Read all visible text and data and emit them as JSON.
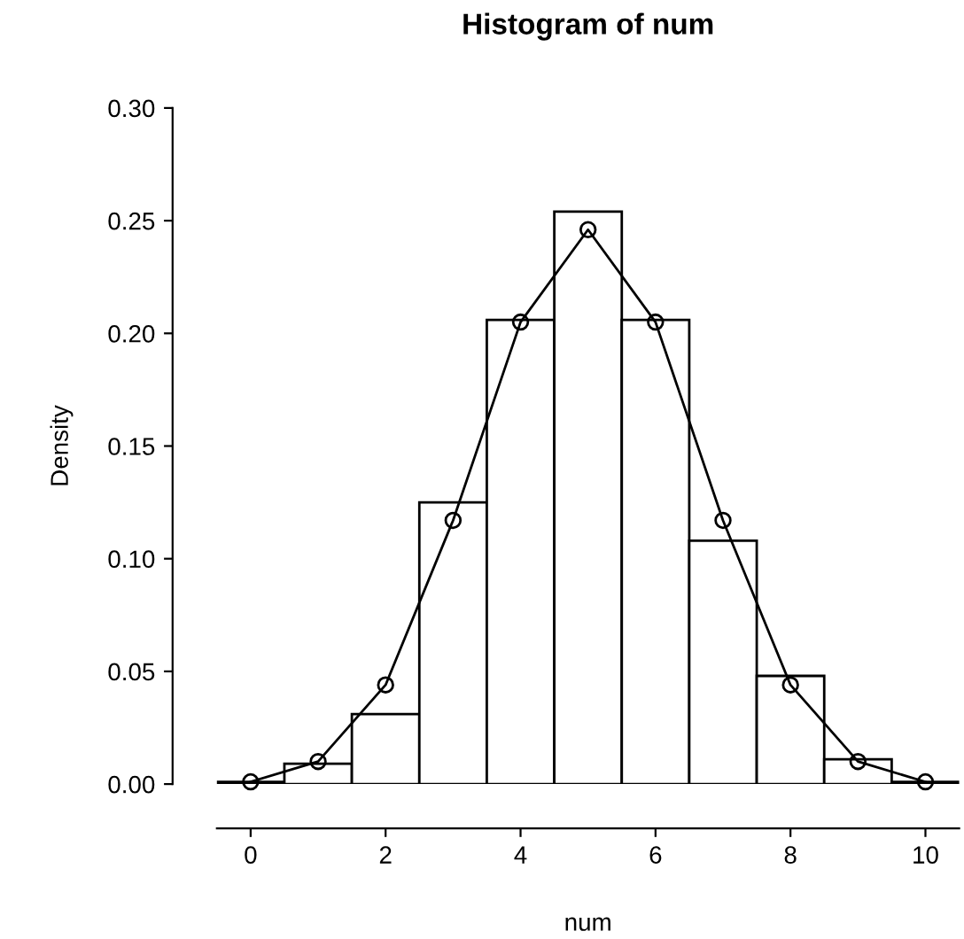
{
  "chart_data": {
    "type": "histogram",
    "title": "Histogram of num",
    "xlabel": "num",
    "ylabel": "Density",
    "bins": [
      -0.5,
      0.5,
      1.5,
      2.5,
      3.5,
      4.5,
      5.5,
      6.5,
      7.5,
      8.5,
      9.5,
      10.5
    ],
    "values": [
      0.001,
      0.009,
      0.031,
      0.125,
      0.206,
      0.254,
      0.206,
      0.108,
      0.048,
      0.011,
      0.001
    ],
    "color": "#ffffff",
    "series": [
      {
        "type": "line",
        "color": "#000000",
        "marker": "circle",
        "x": [
          0,
          1,
          2,
          3,
          4,
          5,
          6,
          7,
          8,
          9,
          10
        ],
        "values": [
          0.001,
          0.01,
          0.044,
          0.117,
          0.205,
          0.246,
          0.205,
          0.117,
          0.044,
          0.01,
          0.001
        ]
      }
    ],
    "xlim": [
      -0.5,
      10.5
    ],
    "ylim": [
      0,
      0.3
    ],
    "xticks": [
      0,
      2,
      4,
      6,
      8,
      10
    ],
    "yticks": [
      {
        "value": 0,
        "label": "0.00"
      },
      {
        "value": 0.05,
        "label": "0.05"
      },
      {
        "value": 0.1,
        "label": "0.10"
      },
      {
        "value": 0.15,
        "label": "0.15"
      },
      {
        "value": 0.2,
        "label": "0.20"
      },
      {
        "value": 0.25,
        "label": "0.25"
      },
      {
        "value": 0.3,
        "label": "0.30"
      }
    ],
    "grid": false
  }
}
